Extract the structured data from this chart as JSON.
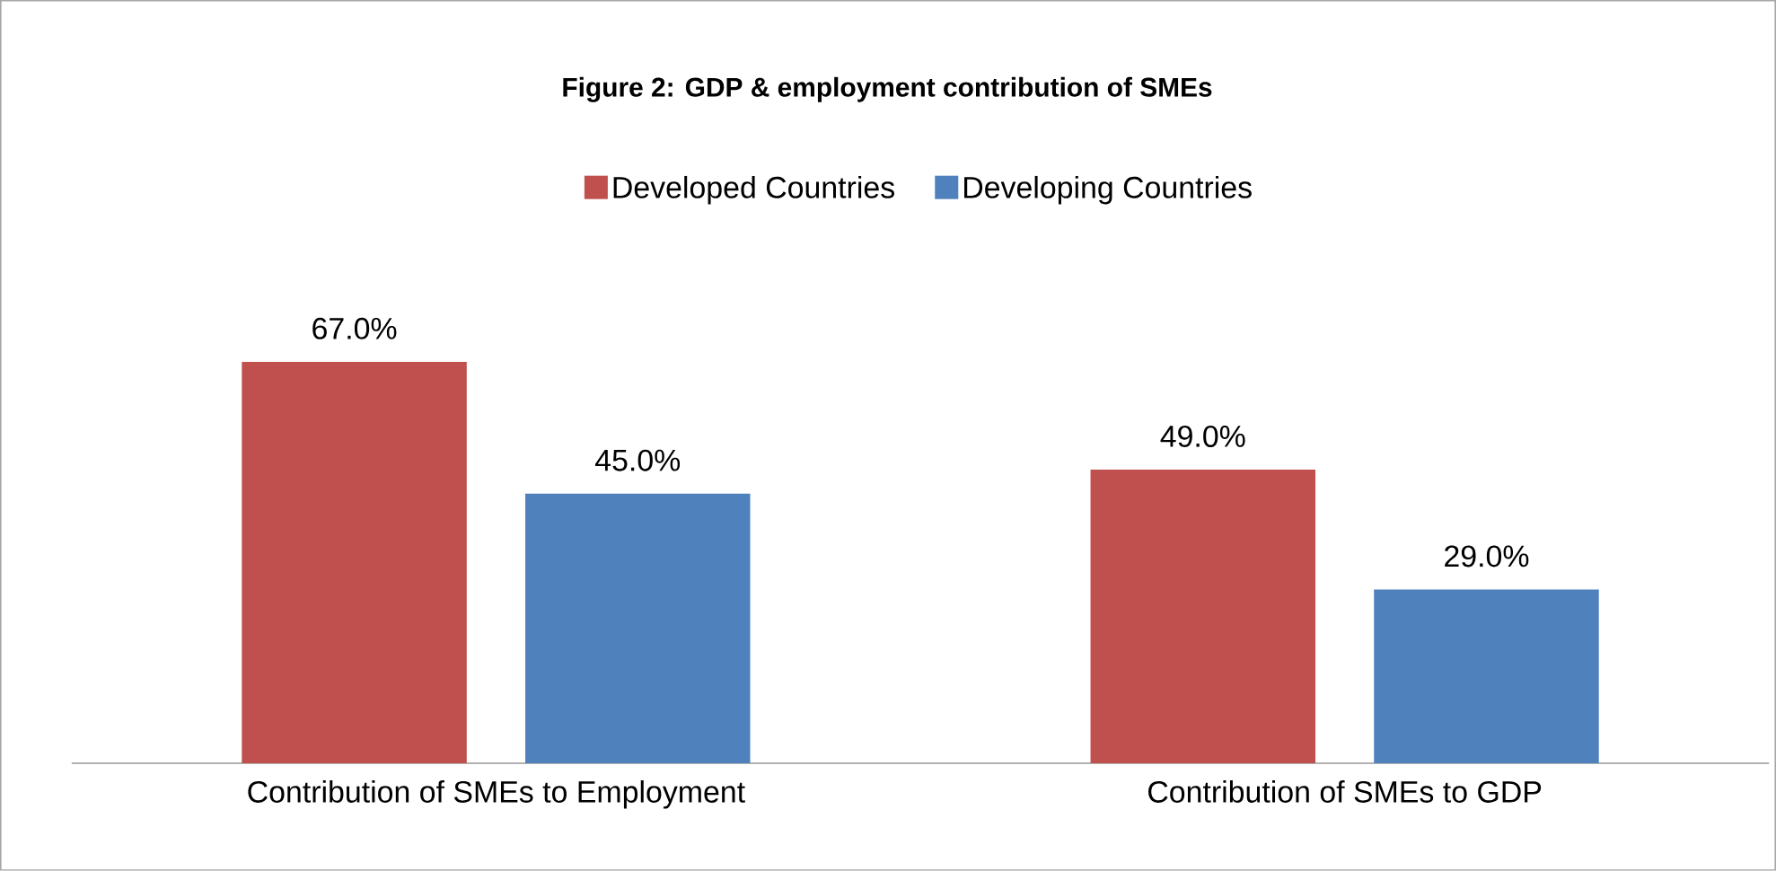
{
  "chart_data": {
    "type": "bar",
    "title": "Figure 2: GDP & employment contribution of SMEs",
    "categories": [
      "Contribution of SMEs to Employment",
      "Contribution of SMEs to GDP"
    ],
    "series": [
      {
        "name": "Developed Countries",
        "color": "#c0504d",
        "values": [
          67,
          49
        ],
        "value_labels": [
          "67.0%",
          "49.0%"
        ]
      },
      {
        "name": "Developing Countries",
        "color": "#4f81bd",
        "values": [
          45,
          29
        ],
        "value_labels": [
          "45.0%",
          "29.0%"
        ]
      }
    ],
    "legend": "top"
  }
}
